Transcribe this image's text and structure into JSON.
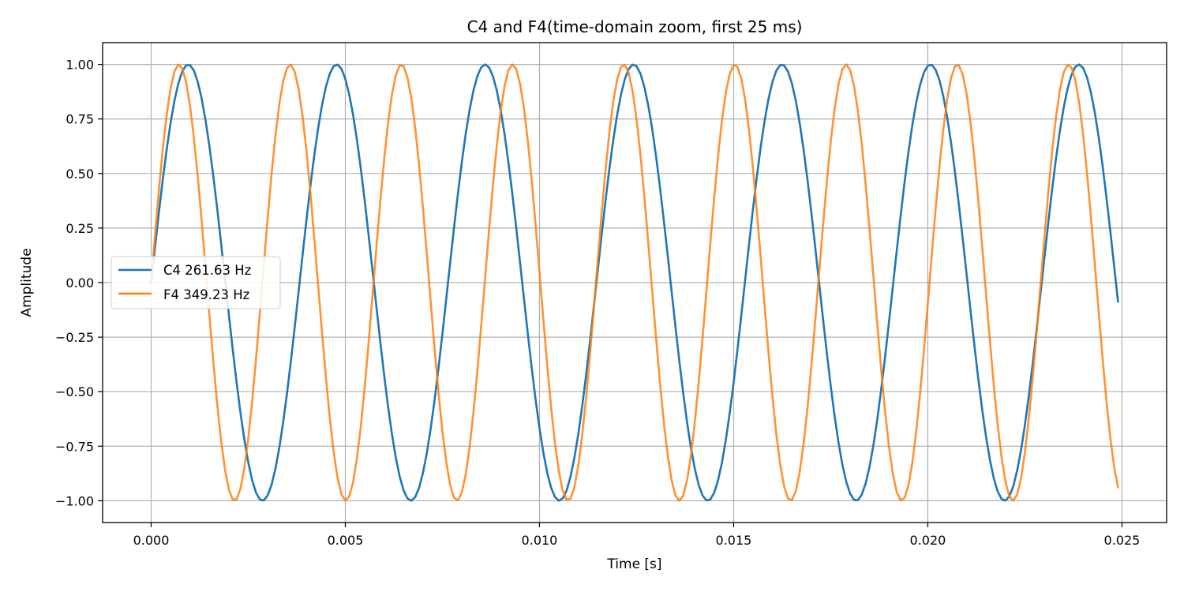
{
  "chart_data": {
    "type": "line",
    "title": "C4 and F4(time-domain zoom, first 25 ms)",
    "xlabel": "Time [s]",
    "ylabel": "Amplitude",
    "xlim": [
      -0.00125,
      0.02615
    ],
    "ylim": [
      -1.1,
      1.1
    ],
    "xticks": [
      0.0,
      0.005,
      0.01,
      0.015,
      0.02,
      0.025
    ],
    "xtick_labels": [
      "0.000",
      "0.005",
      "0.010",
      "0.015",
      "0.020",
      "0.025"
    ],
    "yticks": [
      1.0,
      0.75,
      0.5,
      0.25,
      0.0,
      -0.25,
      -0.5,
      -0.75,
      -1.0
    ],
    "ytick_labels": [
      "1.00",
      "0.75",
      "0.50",
      "0.25",
      "0.00",
      "−0.25",
      "−0.50",
      "−0.75",
      "−1.00"
    ],
    "grid": true,
    "legend_position": "center-left",
    "series": [
      {
        "name": "C4 261.63 Hz",
        "color": "#1f77b4",
        "frequency_hz": 261.63,
        "amplitude": 1.0,
        "function": "sin",
        "x_start": 0.0,
        "x_end": 0.0249,
        "x_step": 0.0001
      },
      {
        "name": "F4 349.23 Hz",
        "color": "#ff7f0e",
        "frequency_hz": 349.23,
        "amplitude": 1.0,
        "function": "sin",
        "x_start": 0.0,
        "x_end": 0.0249,
        "x_step": 0.0001
      }
    ]
  }
}
